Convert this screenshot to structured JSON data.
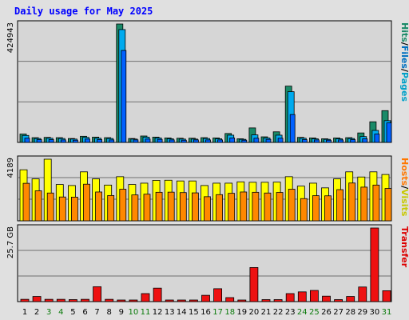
{
  "title": "Daily usage for May 2025",
  "colors": {
    "hits": "#1a8a68",
    "files": "#00aaee",
    "pages": "#0060ff",
    "visits": "#ffff00",
    "hosts": "#ff8800",
    "transfer": "#ee1111",
    "weekend": "#0a7a0a",
    "weekday": "#000000",
    "panel_bg": "#d6d6d6"
  },
  "chart_data": [
    {
      "type": "bar",
      "name": "hits-files-pages",
      "label_parts": [
        {
          "text": "Hits",
          "color": "#1a8a68"
        },
        {
          "text": "/",
          "color": "#000000"
        },
        {
          "text": "Files",
          "color": "#0070c0"
        },
        {
          "text": "/",
          "color": "#000000"
        },
        {
          "text": "Pages",
          "color": "#00a0c8"
        }
      ],
      "ymax_label": "424943",
      "ymax": 424943,
      "categories": [
        "1",
        "2",
        "3",
        "4",
        "5",
        "6",
        "7",
        "8",
        "9",
        "10",
        "11",
        "12",
        "13",
        "14",
        "15",
        "16",
        "17",
        "18",
        "19",
        "20",
        "21",
        "22",
        "23",
        "24",
        "25",
        "26",
        "27",
        "28",
        "29",
        "30",
        "31"
      ],
      "series": [
        {
          "key": "hits",
          "values": [
            30000,
            17000,
            18000,
            17000,
            14000,
            22000,
            19000,
            17000,
            424943,
            14000,
            23000,
            19000,
            16000,
            15000,
            15000,
            17000,
            16000,
            32000,
            13000,
            52000,
            20000,
            38000,
            202000,
            18000,
            16000,
            13000,
            16000,
            17000,
            34000,
            74000,
            114000
          ]
        },
        {
          "key": "files",
          "values": [
            25000,
            14000,
            15000,
            14000,
            12000,
            18000,
            15000,
            14000,
            405000,
            12000,
            19000,
            16000,
            13000,
            12000,
            12000,
            14000,
            13000,
            26000,
            11000,
            27000,
            16000,
            26000,
            182000,
            15000,
            13000,
            11000,
            13000,
            14000,
            21000,
            43000,
            78000
          ]
        },
        {
          "key": "pages",
          "values": [
            15000,
            10000,
            10000,
            9000,
            8000,
            12000,
            10000,
            9000,
            330000,
            9000,
            12000,
            11000,
            9000,
            8000,
            9000,
            9000,
            9000,
            16000,
            8000,
            15000,
            11000,
            15000,
            100000,
            10000,
            9000,
            8000,
            9000,
            10000,
            13000,
            30000,
            70000
          ]
        }
      ]
    },
    {
      "type": "bar",
      "name": "hosts-visits",
      "label_parts": [
        {
          "text": "Hosts",
          "color": "#ff7700"
        },
        {
          "text": "/",
          "color": "#000000"
        },
        {
          "text": "Visits",
          "color": "#c8c800"
        }
      ],
      "ymax_label": "4189",
      "ymax": 4189,
      "categories": [
        "1",
        "2",
        "3",
        "4",
        "5",
        "6",
        "7",
        "8",
        "9",
        "10",
        "11",
        "12",
        "13",
        "14",
        "15",
        "16",
        "17",
        "18",
        "19",
        "20",
        "21",
        "22",
        "23",
        "24",
        "25",
        "26",
        "27",
        "28",
        "29",
        "30",
        "31"
      ],
      "series": [
        {
          "key": "visits",
          "values": [
            3470,
            2850,
            4189,
            2470,
            2400,
            3330,
            2850,
            2430,
            3000,
            2470,
            2560,
            2750,
            2760,
            2710,
            2710,
            2400,
            2560,
            2560,
            2650,
            2620,
            2620,
            2630,
            3000,
            2360,
            2560,
            2240,
            2850,
            3330,
            2980,
            3330,
            3150
          ]
        },
        {
          "key": "hosts",
          "values": [
            2550,
            2040,
            1890,
            1620,
            1610,
            2490,
            1960,
            1720,
            2150,
            1760,
            1810,
            1940,
            1950,
            1920,
            1900,
            1640,
            1780,
            1870,
            1960,
            1940,
            1890,
            1930,
            2150,
            1510,
            1710,
            1700,
            2120,
            2570,
            2290,
            2430,
            2200
          ]
        }
      ]
    },
    {
      "type": "bar",
      "name": "transfer",
      "label_parts": [
        {
          "text": "Transfer",
          "color": "#dd0000"
        }
      ],
      "ymax_label": "25.7 GB",
      "ymax": 25.7,
      "categories": [
        "1",
        "2",
        "3",
        "4",
        "5",
        "6",
        "7",
        "8",
        "9",
        "10",
        "11",
        "12",
        "13",
        "14",
        "15",
        "16",
        "17",
        "18",
        "19",
        "20",
        "21",
        "22",
        "23",
        "24",
        "25",
        "26",
        "27",
        "28",
        "29",
        "30",
        "31"
      ],
      "series": [
        {
          "key": "transfer",
          "values": [
            0.8,
            1.8,
            0.8,
            0.8,
            0.7,
            0.8,
            5.2,
            0.8,
            0.4,
            0.4,
            2.8,
            4.7,
            0.4,
            0.4,
            0.4,
            2.2,
            4.5,
            1.4,
            0.4,
            11.9,
            0.7,
            0.7,
            2.8,
            3.4,
            3.9,
            1.9,
            0.7,
            1.8,
            5.1,
            25.7,
            3.8
          ]
        }
      ]
    }
  ],
  "day_labels": [
    {
      "text": "1",
      "weekend": false
    },
    {
      "text": "2",
      "weekend": false
    },
    {
      "text": "3",
      "weekend": true
    },
    {
      "text": "4",
      "weekend": true
    },
    {
      "text": "5",
      "weekend": false
    },
    {
      "text": "6",
      "weekend": false
    },
    {
      "text": "7",
      "weekend": false
    },
    {
      "text": "8",
      "weekend": false
    },
    {
      "text": "9",
      "weekend": false
    },
    {
      "text": "10",
      "weekend": true
    },
    {
      "text": "11",
      "weekend": true
    },
    {
      "text": "12",
      "weekend": false
    },
    {
      "text": "13",
      "weekend": false
    },
    {
      "text": "14",
      "weekend": false
    },
    {
      "text": "15",
      "weekend": false
    },
    {
      "text": "16",
      "weekend": false
    },
    {
      "text": "17",
      "weekend": true
    },
    {
      "text": "18",
      "weekend": true
    },
    {
      "text": "19",
      "weekend": false
    },
    {
      "text": "20",
      "weekend": false
    },
    {
      "text": "21",
      "weekend": false
    },
    {
      "text": "22",
      "weekend": false
    },
    {
      "text": "23",
      "weekend": false
    },
    {
      "text": "24",
      "weekend": true
    },
    {
      "text": "25",
      "weekend": true
    },
    {
      "text": "26",
      "weekend": false
    },
    {
      "text": "27",
      "weekend": false
    },
    {
      "text": "28",
      "weekend": false
    },
    {
      "text": "29",
      "weekend": false
    },
    {
      "text": "30",
      "weekend": false
    },
    {
      "text": "31",
      "weekend": true
    }
  ]
}
